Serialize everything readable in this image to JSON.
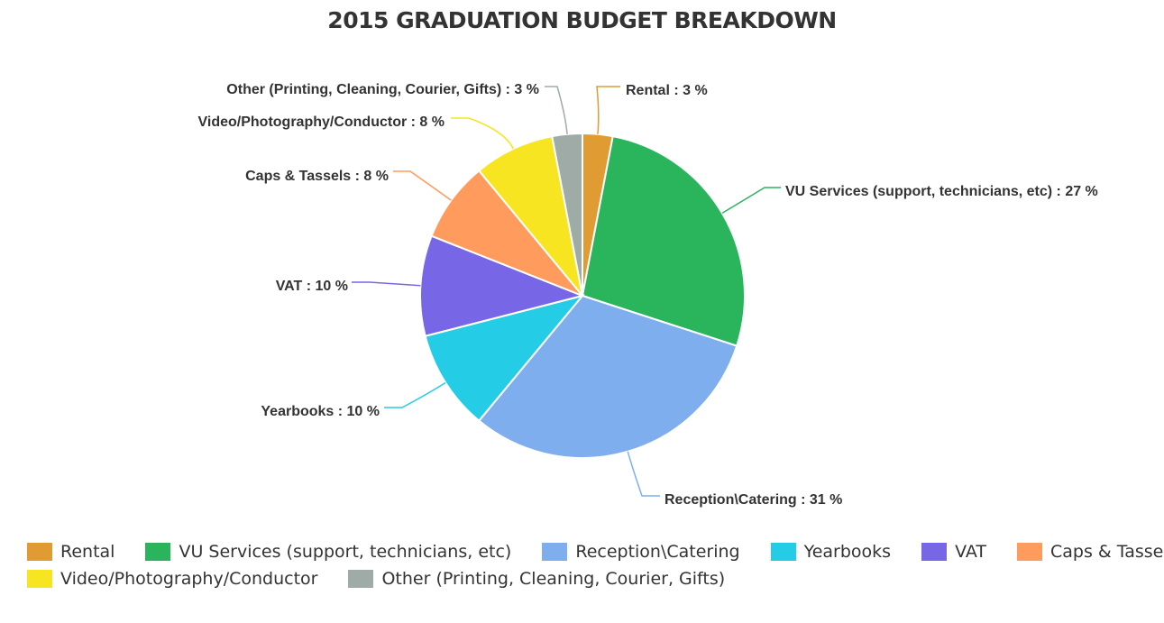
{
  "chart_data": {
    "type": "pie",
    "title": "2015 GRADUATION BUDGET BREAKDOWN",
    "slices": [
      {
        "name": "Rental",
        "value": 3,
        "label": "Rental : 3 %",
        "color": "#E09C32"
      },
      {
        "name": "VU Services (support, technicians, etc)",
        "value": 27,
        "label": "VU Services (support, technicians, etc) : 27 %",
        "color": "#2AB45C"
      },
      {
        "name": "Reception\\Catering",
        "value": 31,
        "label": "Reception\\Catering : 31 %",
        "color": "#7FAEEE"
      },
      {
        "name": "Yearbooks",
        "value": 10,
        "label": "Yearbooks : 10 %",
        "color": "#25CCE6"
      },
      {
        "name": "VAT",
        "value": 10,
        "label": "VAT : 10 %",
        "color": "#7767E6"
      },
      {
        "name": "Caps & Tassels",
        "value": 8,
        "label": "Caps & Tassels : 8 %",
        "color": "#FF9B5C"
      },
      {
        "name": "Video/Photography/Conductor",
        "value": 8,
        "label": "Video/Photography/Conductor : 8 %",
        "color": "#F6E520"
      },
      {
        "name": "Other (Printing, Cleaning, Courier, Gifts)",
        "value": 3,
        "label": "Other (Printing, Cleaning, Courier, Gifts) : 3 %",
        "color": "#9EABA6"
      }
    ],
    "legend_position": "bottom-left"
  }
}
